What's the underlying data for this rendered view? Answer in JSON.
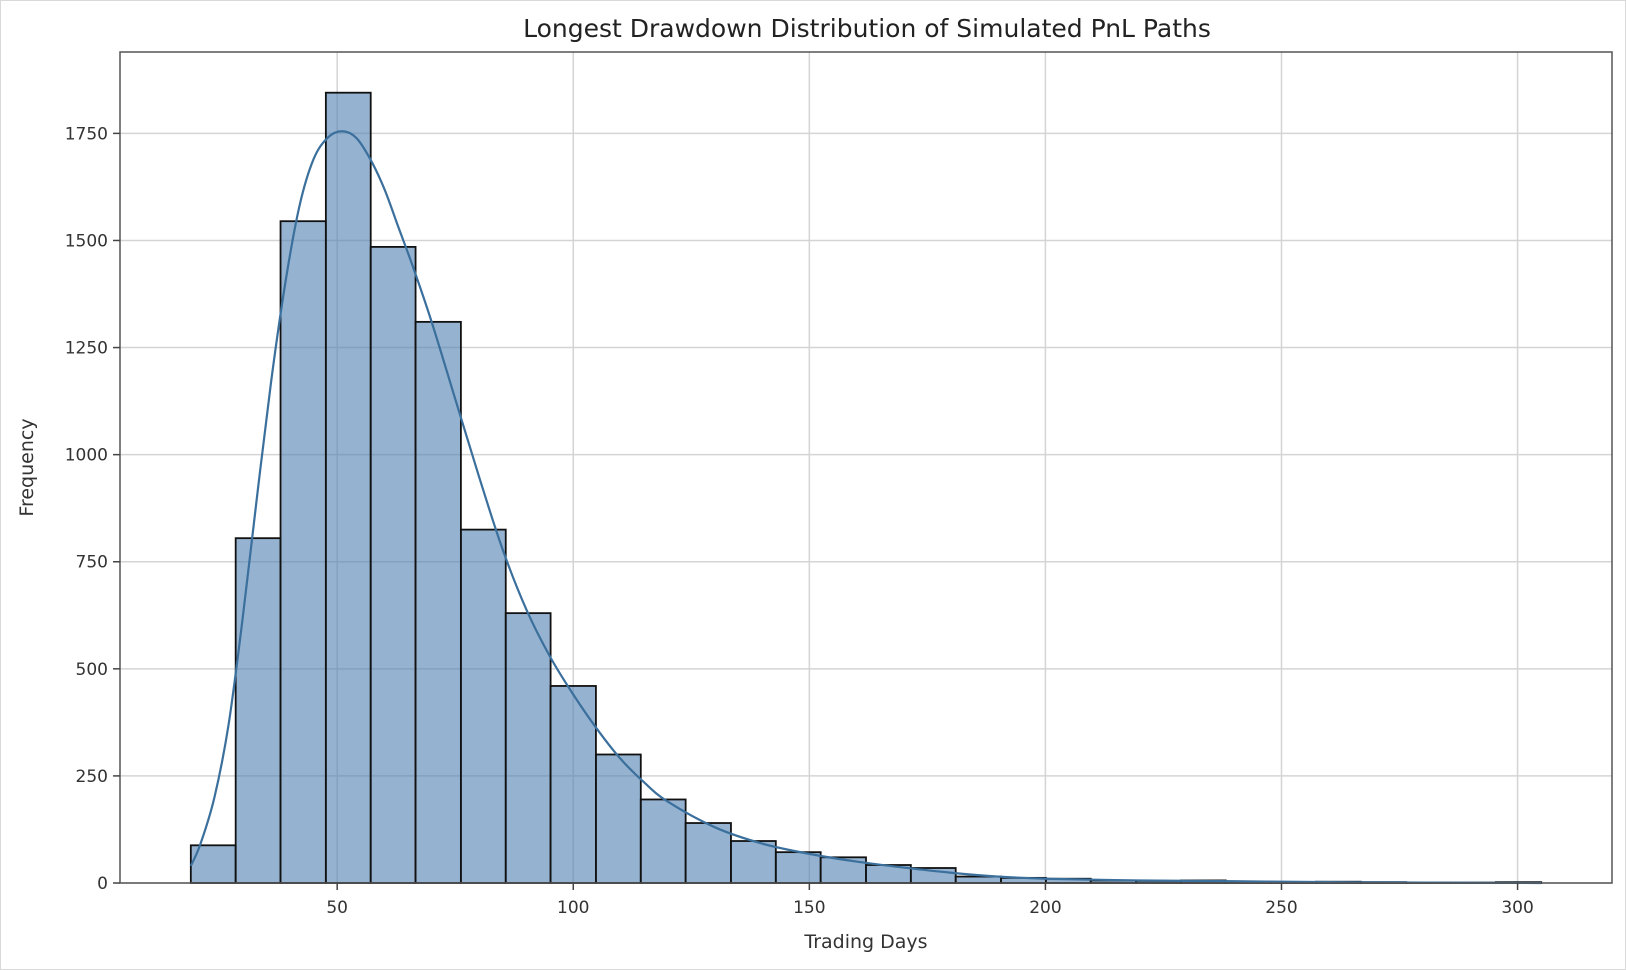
{
  "chart_data": {
    "type": "bar",
    "title": "Longest Drawdown Distribution of Simulated PnL Paths",
    "xlabel": "Trading Days",
    "ylabel": "Frequency",
    "xlim": [
      4,
      320
    ],
    "ylim": [
      0,
      1940
    ],
    "xticks": [
      50,
      100,
      150,
      200,
      250,
      300
    ],
    "yticks": [
      0,
      250,
      500,
      750,
      1000,
      1250,
      1500,
      1750
    ],
    "grid": true,
    "bar_color": "#4f81b0",
    "kde_color": "#3b6f9c",
    "bins": [
      {
        "x0": 19.0,
        "x1": 28.5,
        "value": 88
      },
      {
        "x0": 28.5,
        "x1": 38.0,
        "value": 805
      },
      {
        "x0": 38.0,
        "x1": 47.6,
        "value": 1545
      },
      {
        "x0": 47.6,
        "x1": 57.1,
        "value": 1845
      },
      {
        "x0": 57.1,
        "x1": 66.6,
        "value": 1485
      },
      {
        "x0": 66.6,
        "x1": 76.2,
        "value": 1310
      },
      {
        "x0": 76.2,
        "x1": 85.7,
        "value": 825
      },
      {
        "x0": 85.7,
        "x1": 95.2,
        "value": 630
      },
      {
        "x0": 95.2,
        "x1": 104.8,
        "value": 460
      },
      {
        "x0": 104.8,
        "x1": 114.3,
        "value": 300
      },
      {
        "x0": 114.3,
        "x1": 123.8,
        "value": 195
      },
      {
        "x0": 123.8,
        "x1": 133.4,
        "value": 140
      },
      {
        "x0": 133.4,
        "x1": 142.9,
        "value": 98
      },
      {
        "x0": 142.9,
        "x1": 152.4,
        "value": 72
      },
      {
        "x0": 152.4,
        "x1": 162.0,
        "value": 60
      },
      {
        "x0": 162.0,
        "x1": 171.5,
        "value": 42
      },
      {
        "x0": 171.5,
        "x1": 181.0,
        "value": 35
      },
      {
        "x0": 181.0,
        "x1": 190.6,
        "value": 15
      },
      {
        "x0": 190.6,
        "x1": 200.1,
        "value": 12
      },
      {
        "x0": 200.1,
        "x1": 209.6,
        "value": 10
      },
      {
        "x0": 209.6,
        "x1": 219.2,
        "value": 6
      },
      {
        "x0": 219.2,
        "x1": 228.7,
        "value": 5
      },
      {
        "x0": 228.7,
        "x1": 238.2,
        "value": 6
      },
      {
        "x0": 238.2,
        "x1": 247.8,
        "value": 2
      },
      {
        "x0": 247.8,
        "x1": 257.3,
        "value": 2
      },
      {
        "x0": 257.3,
        "x1": 266.8,
        "value": 3
      },
      {
        "x0": 266.8,
        "x1": 276.4,
        "value": 2
      },
      {
        "x0": 276.4,
        "x1": 285.9,
        "value": 1
      },
      {
        "x0": 285.9,
        "x1": 295.4,
        "value": 1
      },
      {
        "x0": 295.4,
        "x1": 305.0,
        "value": 2
      }
    ],
    "kde": {
      "x": [
        19,
        21,
        24,
        27,
        30,
        33,
        36,
        39,
        42,
        45,
        48,
        51,
        54,
        57,
        60,
        63,
        66,
        70,
        75,
        80,
        85,
        90,
        95,
        100,
        105,
        110,
        115,
        120,
        130,
        140,
        150,
        160,
        170,
        180,
        190,
        200,
        220,
        240,
        260,
        280,
        305
      ],
      "y": [
        40,
        90,
        200,
        370,
        620,
        900,
        1170,
        1400,
        1580,
        1690,
        1740,
        1755,
        1740,
        1690,
        1620,
        1530,
        1440,
        1310,
        1130,
        950,
        780,
        640,
        530,
        440,
        360,
        290,
        235,
        190,
        130,
        92,
        68,
        50,
        36,
        24,
        15,
        10,
        6,
        4,
        2,
        1,
        0
      ]
    }
  }
}
